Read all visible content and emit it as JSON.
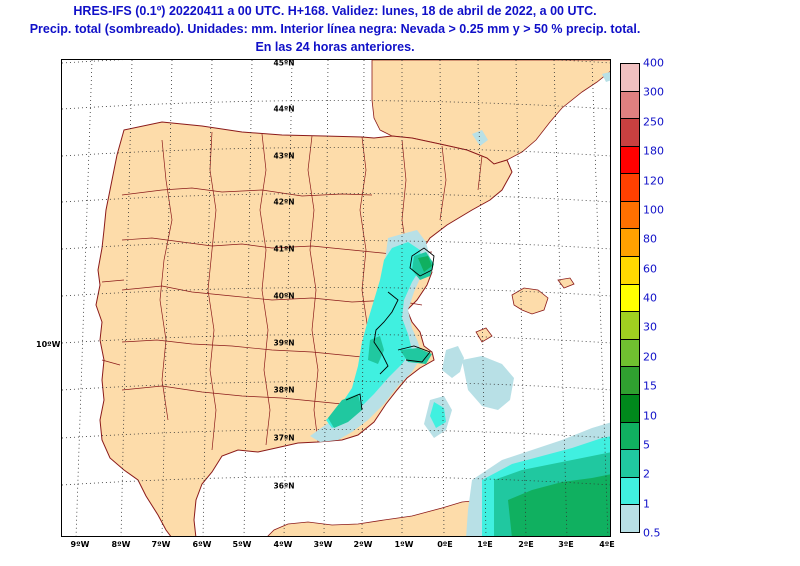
{
  "title": {
    "line1": "HRES-IFS (0.1º) 20220411 a 00 UTC. H+168. Validez: lunes, 18 de abril de 2022, a 00 UTC.",
    "line2": "Precip. total (sombreado). Unidades: mm. Interior línea negra: Nevada > 0.25 mm y > 50 % precip. total.",
    "line3": "En las 24 horas anteriores."
  },
  "map": {
    "latitude_labels": [
      "45ºN",
      "44ºN",
      "43ºN",
      "42ºN",
      "41ºN",
      "40ºN",
      "39ºN",
      "38ºN",
      "37ºN",
      "36ºN"
    ],
    "longitude_labels": [
      "9ºW",
      "8ºW",
      "7ºW",
      "6ºW",
      "5ºW",
      "4ºW",
      "3ºW",
      "2ºW",
      "1ºW",
      "0ºE",
      "1ºE",
      "2ºE",
      "3ºE",
      "4ºE"
    ],
    "side_longitude_label": "10ºW",
    "colors": {
      "land": "#fddcaa",
      "sea": "#ffffff",
      "borders": "#8b1a1a",
      "snow_contour": "#000000"
    }
  },
  "colorbar": {
    "labels": [
      "0.5",
      "1",
      "2",
      "5",
      "10",
      "15",
      "20",
      "30",
      "40",
      "60",
      "80",
      "100",
      "120",
      "180",
      "250",
      "300",
      "400"
    ],
    "colors": [
      "#b8e0e6",
      "#40f0e0",
      "#20c8a0",
      "#10b060",
      "#00881c",
      "#30a030",
      "#70c030",
      "#a0d020",
      "#ffff00",
      "#ffd800",
      "#ffa000",
      "#ff7000",
      "#ff4000",
      "#ff0000",
      "#c84040",
      "#e08080",
      "#f0c0c0"
    ]
  }
}
